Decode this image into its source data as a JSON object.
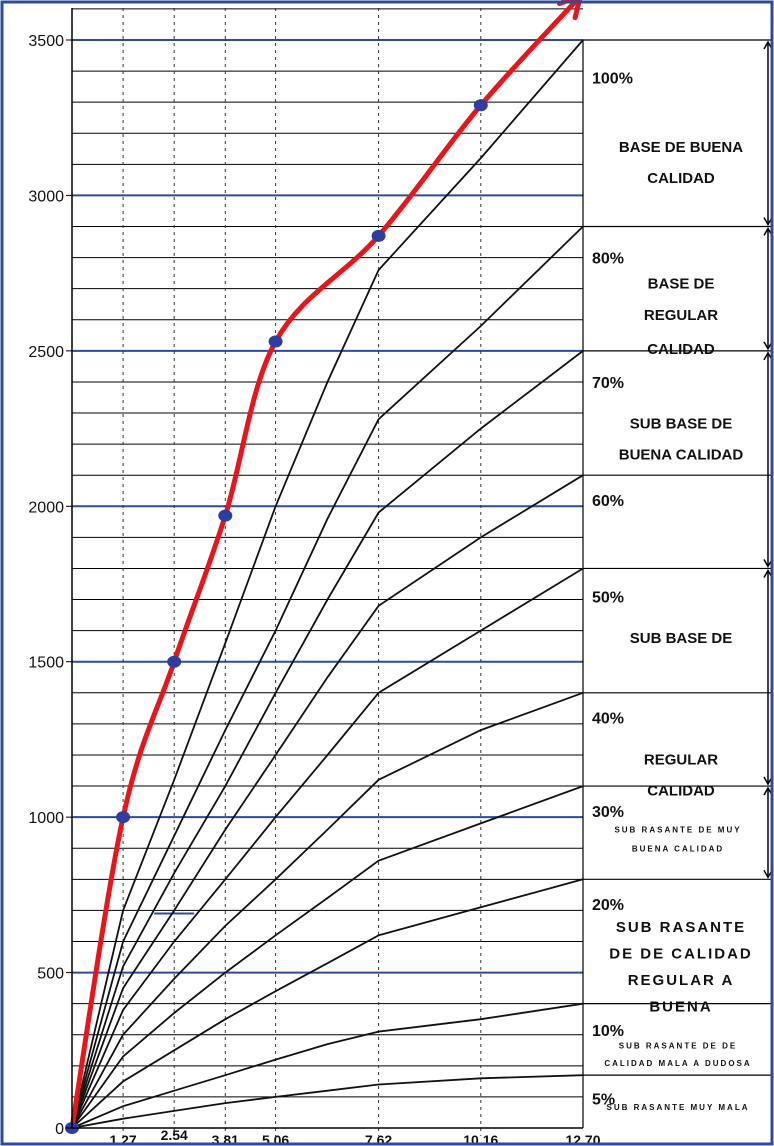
{
  "chart_data": {
    "type": "line",
    "title": "",
    "xlabel": "",
    "ylabel": "",
    "xlim": [
      0,
      12.7
    ],
    "ylim": [
      0,
      3500
    ],
    "x_ticks": [
      "1.27",
      "2.54",
      "3.81",
      "5.06",
      "7.62",
      "10.16",
      "12.70"
    ],
    "y_ticks": [
      "0",
      "500",
      "1000",
      "1500",
      "2000",
      "2500",
      "3000",
      "3500"
    ],
    "colors": {
      "curve": "#e8161b",
      "points": "#2e3d9e",
      "frame": "#2f4a9a",
      "major_grid": "#2f4a9a",
      "minor_grid": "#000000"
    },
    "measured_curve": {
      "points": [
        {
          "x": 0,
          "y": 0
        },
        {
          "x": 1.27,
          "y": 1000
        },
        {
          "x": 2.54,
          "y": 1500
        },
        {
          "x": 3.81,
          "y": 1970
        },
        {
          "x": 5.06,
          "y": 2530
        },
        {
          "x": 7.62,
          "y": 2870
        },
        {
          "x": 10.16,
          "y": 3290
        },
        {
          "x": 12.7,
          "y": 3650
        }
      ]
    },
    "reference_curves": [
      {
        "label": "100%",
        "values": [
          0,
          700,
          1120,
          1560,
          2000,
          2400,
          2760,
          3120,
          3500
        ]
      },
      {
        "label": "80%",
        "values": [
          0,
          600,
          940,
          1280,
          1600,
          1960,
          2280,
          2580,
          2900
        ]
      },
      {
        "label": "70%",
        "values": [
          0,
          520,
          820,
          1100,
          1400,
          1700,
          1980,
          2250,
          2500
        ]
      },
      {
        "label": "60%",
        "values": [
          0,
          450,
          700,
          960,
          1200,
          1450,
          1680,
          1900,
          2100
        ]
      },
      {
        "label": "50%",
        "values": [
          0,
          380,
          600,
          800,
          1000,
          1200,
          1400,
          1600,
          1800
        ]
      },
      {
        "label": "40%",
        "values": [
          0,
          300,
          480,
          650,
          800,
          960,
          1120,
          1280,
          1400
        ]
      },
      {
        "label": "30%",
        "values": [
          0,
          230,
          370,
          500,
          620,
          740,
          860,
          980,
          1100
        ]
      },
      {
        "label": "20%",
        "values": [
          0,
          150,
          250,
          350,
          440,
          530,
          620,
          710,
          800
        ]
      },
      {
        "label": "10%",
        "values": [
          0,
          70,
          120,
          170,
          220,
          270,
          310,
          350,
          400
        ]
      },
      {
        "label": "5%",
        "values": [
          0,
          30,
          55,
          80,
          100,
          120,
          140,
          160,
          170
        ]
      }
    ],
    "reference_x": [
      0,
      1.27,
      2.54,
      3.81,
      5.06,
      6.35,
      7.62,
      10.16,
      12.7
    ],
    "zones": [
      {
        "pct": "100%",
        "lines": [
          "BASE DE BUENA",
          "CALIDAD"
        ],
        "top": 3500,
        "bottom": 2900,
        "style": "lbl",
        "arrow": true
      },
      {
        "pct": "80%",
        "lines": [
          "BASE DE",
          "REGULAR",
          "CALIDAD"
        ],
        "top": 2900,
        "bottom": 2500,
        "style": "lbl",
        "arrow": true
      },
      {
        "pct": "70%",
        "lines": [
          "SUB BASE DE",
          "BUENA CALIDAD"
        ],
        "top": 2500,
        "bottom": 1800,
        "style": "lbl",
        "arrow": true
      },
      {
        "pct": "60%",
        "lines": [],
        "top": 2100,
        "bottom": 2100,
        "style": "lbl",
        "arrow": false
      },
      {
        "pct": "50%",
        "lines": [
          "SUB BASE DE"
        ],
        "top": 1800,
        "bottom": 1100,
        "style": "lbl",
        "arrow": true
      },
      {
        "pct": "40%",
        "lines": [
          "REGULAR",
          "CALIDAD"
        ],
        "top": 1400,
        "bottom": 1400,
        "style": "lbl",
        "arrow": false
      },
      {
        "pct": "30%",
        "lines": [
          "SUB RASANTE DE MUY",
          "BUENA CALIDAD"
        ],
        "top": 1100,
        "bottom": 800,
        "style": "lbl-sm",
        "arrow": true
      },
      {
        "pct": "20%",
        "lines": [
          "SUB RASANTE",
          "DE DE CALIDAD",
          "REGULAR A",
          "BUENA"
        ],
        "top": 800,
        "bottom": 400,
        "style": "lbl-md",
        "arrow": false
      },
      {
        "pct": "10%",
        "lines": [
          "SUB RASANTE DE DE",
          "CALIDAD MALA A DUDOSA"
        ],
        "top": 400,
        "bottom": 170,
        "style": "lbl-sm",
        "arrow": false
      },
      {
        "pct": "5%",
        "lines": [
          "SUB RASANTE MUY MALA"
        ],
        "top": 170,
        "bottom": 0,
        "style": "lbl-sm",
        "arrow": false
      }
    ]
  }
}
